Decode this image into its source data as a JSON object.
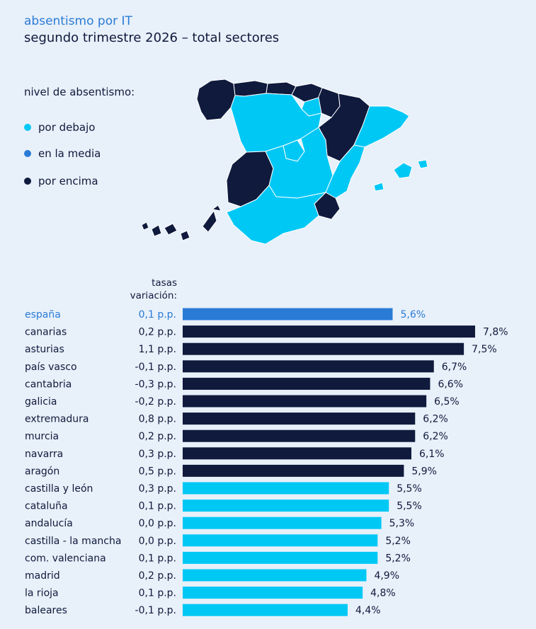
{
  "header": {
    "title": "absentismo por IT",
    "subtitle": "segundo trimestre 2026 – total sectores"
  },
  "legend": {
    "title": "nivel de absentismo:",
    "items": [
      {
        "label": "por debajo",
        "color": "#00c8f5"
      },
      {
        "label": "en la media",
        "color": "#2a7bd6"
      },
      {
        "label": "por encima",
        "color": "#0f1a3d"
      }
    ]
  },
  "colors": {
    "below": "#00c8f5",
    "average": "#2a7bd6",
    "above": "#0f1a3d",
    "highlight_text": "#2a7bd6",
    "map_border": "#ffffff"
  },
  "column_header": {
    "line1": "tasas",
    "line2": "variación:"
  },
  "chart_data": {
    "type": "bar",
    "orientation": "horizontal",
    "title": "absentismo por IT",
    "subtitle": "segundo trimestre 2026 – total sectores",
    "categories": [
      "españa",
      "canarias",
      "asturias",
      "país vasco",
      "cantabria",
      "galicia",
      "extremadura",
      "murcia",
      "navarra",
      "aragón",
      "castilla y león",
      "cataluña",
      "andalucía",
      "castilla - la mancha",
      "com. valenciana",
      "madrid",
      "la rioja",
      "baleares"
    ],
    "values": [
      5.6,
      7.8,
      7.5,
      6.7,
      6.6,
      6.5,
      6.2,
      6.2,
      6.1,
      5.9,
      5.5,
      5.5,
      5.3,
      5.2,
      5.2,
      4.9,
      4.8,
      4.4
    ],
    "value_labels": [
      "5,6%",
      "7,8%",
      "7,5%",
      "6,7%",
      "6,6%",
      "6,5%",
      "6,2%",
      "6,2%",
      "6,1%",
      "5,9%",
      "5,5%",
      "5,5%",
      "5,3%",
      "5,2%",
      "5,2%",
      "4,9%",
      "4,8%",
      "4,4%"
    ],
    "variation_labels": [
      "0,1 p.p.",
      "0,2 p.p.",
      "1,1 p.p.",
      "-0,1 p.p.",
      "-0,3 p.p.",
      "-0,2 p.p.",
      "0,8 p.p.",
      "0,2 p.p.",
      "0,3 p.p.",
      "0,5 p.p.",
      "0,3 p.p.",
      "0,1 p.p.",
      "0,0 p.p.",
      "0,0 p.p.",
      "0,1 p.p.",
      "0,2 p.p.",
      "0,1 p.p.",
      "-0,1 p.p."
    ],
    "level": [
      "average",
      "above",
      "above",
      "above",
      "above",
      "above",
      "above",
      "above",
      "above",
      "above",
      "below",
      "below",
      "below",
      "below",
      "below",
      "below",
      "below",
      "below"
    ],
    "xlim": [
      0,
      7.8
    ],
    "grid": false,
    "legend_position": "top-left"
  }
}
